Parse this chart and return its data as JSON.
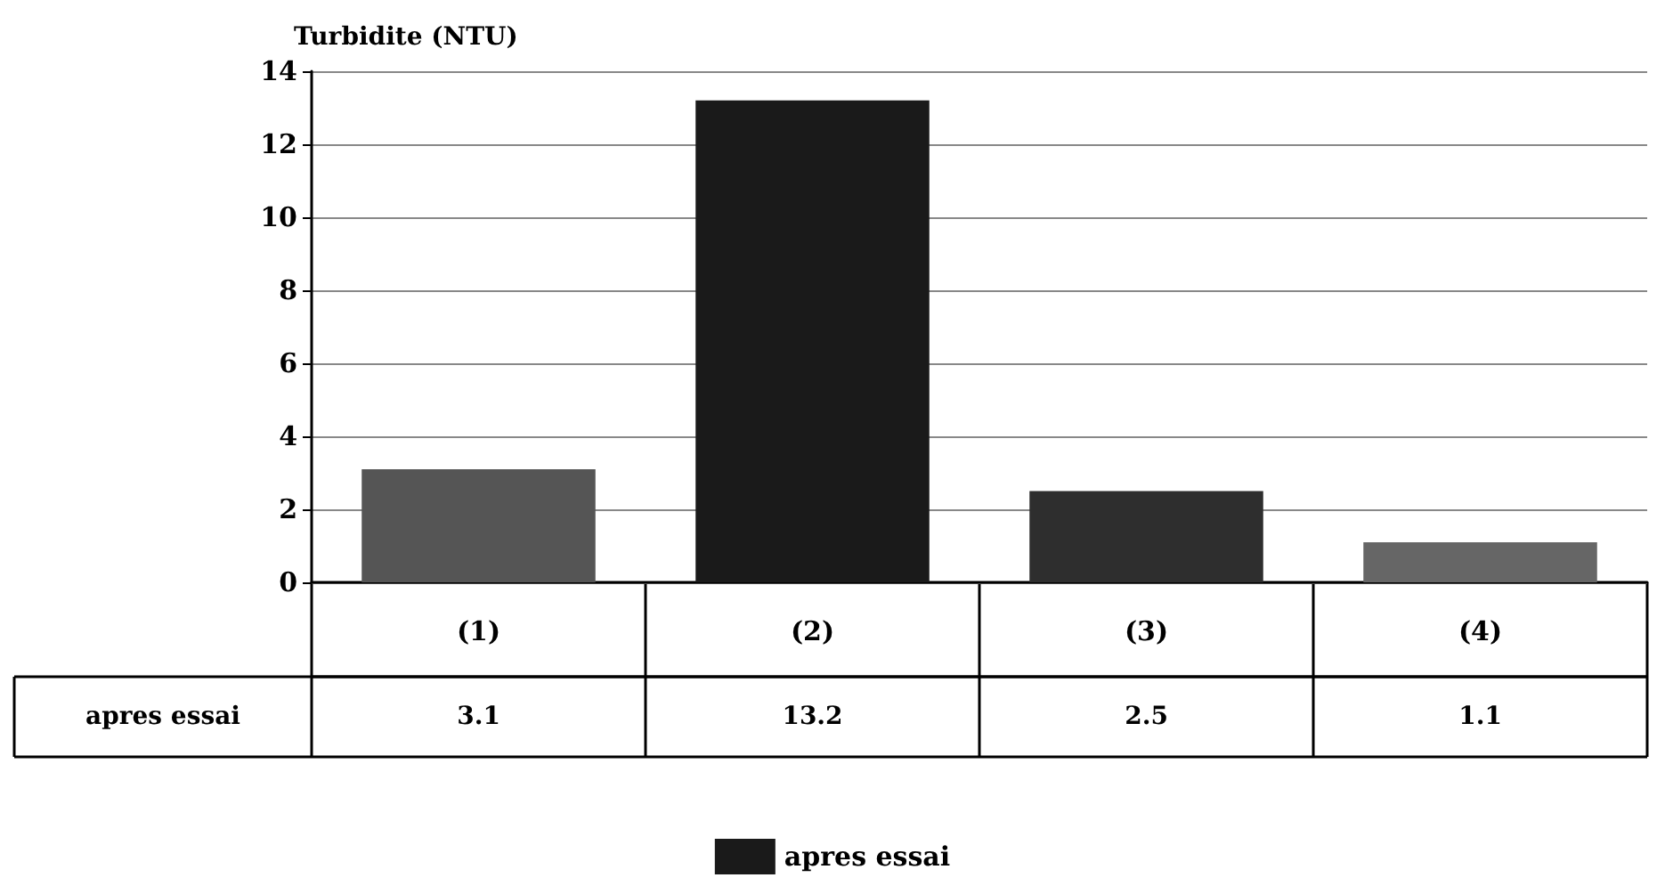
{
  "chart_data": {
    "type": "bar",
    "ylabel": "Turbidite (NTU)",
    "categories": [
      "(1)",
      "(2)",
      "(3)",
      "(4)"
    ],
    "series": [
      {
        "name": "apres essai",
        "color": "#1a1a1a",
        "colors": [
          "#555555",
          "#1a1a1a",
          "#2e2e2e",
          "#666666"
        ],
        "values": [
          3.1,
          13.2,
          2.5,
          1.1
        ]
      }
    ],
    "ylim": [
      0,
      14
    ],
    "yticks": [
      0,
      2,
      4,
      6,
      8,
      10,
      12,
      14
    ],
    "grid": "y",
    "legend": "bottom",
    "data_labels": true
  }
}
